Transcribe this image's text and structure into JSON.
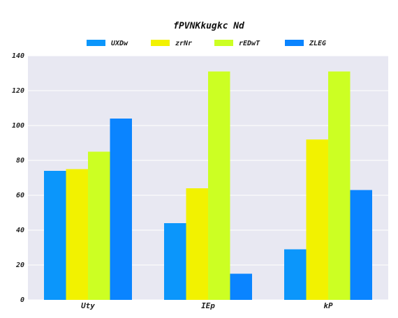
{
  "chart_data": {
    "type": "bar",
    "title": "fPVNKkugkc Nd",
    "categories": [
      "Uty",
      "IEp",
      "kP"
    ],
    "series": [
      {
        "name": "UXDw",
        "values": [
          74,
          44,
          29
        ]
      },
      {
        "name": "zrNr",
        "values": [
          75,
          64,
          92
        ]
      },
      {
        "name": "rEDwT",
        "values": [
          85,
          131,
          131
        ]
      },
      {
        "name": "ZLEG",
        "values": [
          104,
          15,
          63
        ]
      }
    ],
    "ylim": [
      0,
      140
    ],
    "yticks": [
      0,
      20,
      40,
      60,
      80,
      100,
      120,
      140
    ],
    "grid": true,
    "legend_position": "top-center",
    "colors": {
      "UXDw": "#0b96fb",
      "zrNr": "#f2f200",
      "rEDwT": "#ccff23",
      "ZLEG": "#0a84ff",
      "plot_background": "#e8e8f2",
      "grid": "#ffffff"
    }
  }
}
